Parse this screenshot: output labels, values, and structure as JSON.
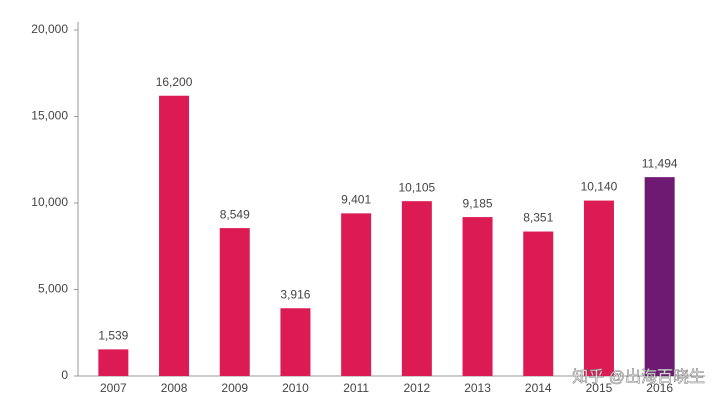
{
  "chart_data": {
    "type": "bar",
    "categories": [
      "2007",
      "2008",
      "2009",
      "2010",
      "2011",
      "2012",
      "2013",
      "2014",
      "2015",
      "2016"
    ],
    "values": [
      1539,
      16200,
      8549,
      3916,
      9401,
      10105,
      9185,
      8351,
      10140,
      11494
    ],
    "value_labels": [
      "1,539",
      "16,200",
      "8,549",
      "3,916",
      "9,401",
      "10,105",
      "9,185",
      "8,351",
      "10,140",
      "11,494"
    ],
    "colors": [
      "#dc1a53",
      "#dc1a53",
      "#dc1a53",
      "#dc1a53",
      "#dc1a53",
      "#dc1a53",
      "#dc1a53",
      "#dc1a53",
      "#dc1a53",
      "#6e1a73"
    ],
    "ylim": [
      0,
      20000
    ],
    "yticks": [
      0,
      {
        "value": 5000,
        "label": "5,000"
      },
      {
        "value": 10000,
        "label": "10,000"
      },
      {
        "value": 15000,
        "label": "15,000"
      },
      {
        "value": 20000,
        "label": "20,000"
      }
    ],
    "grid": false,
    "watermark": "知乎 @出海百晓生"
  }
}
